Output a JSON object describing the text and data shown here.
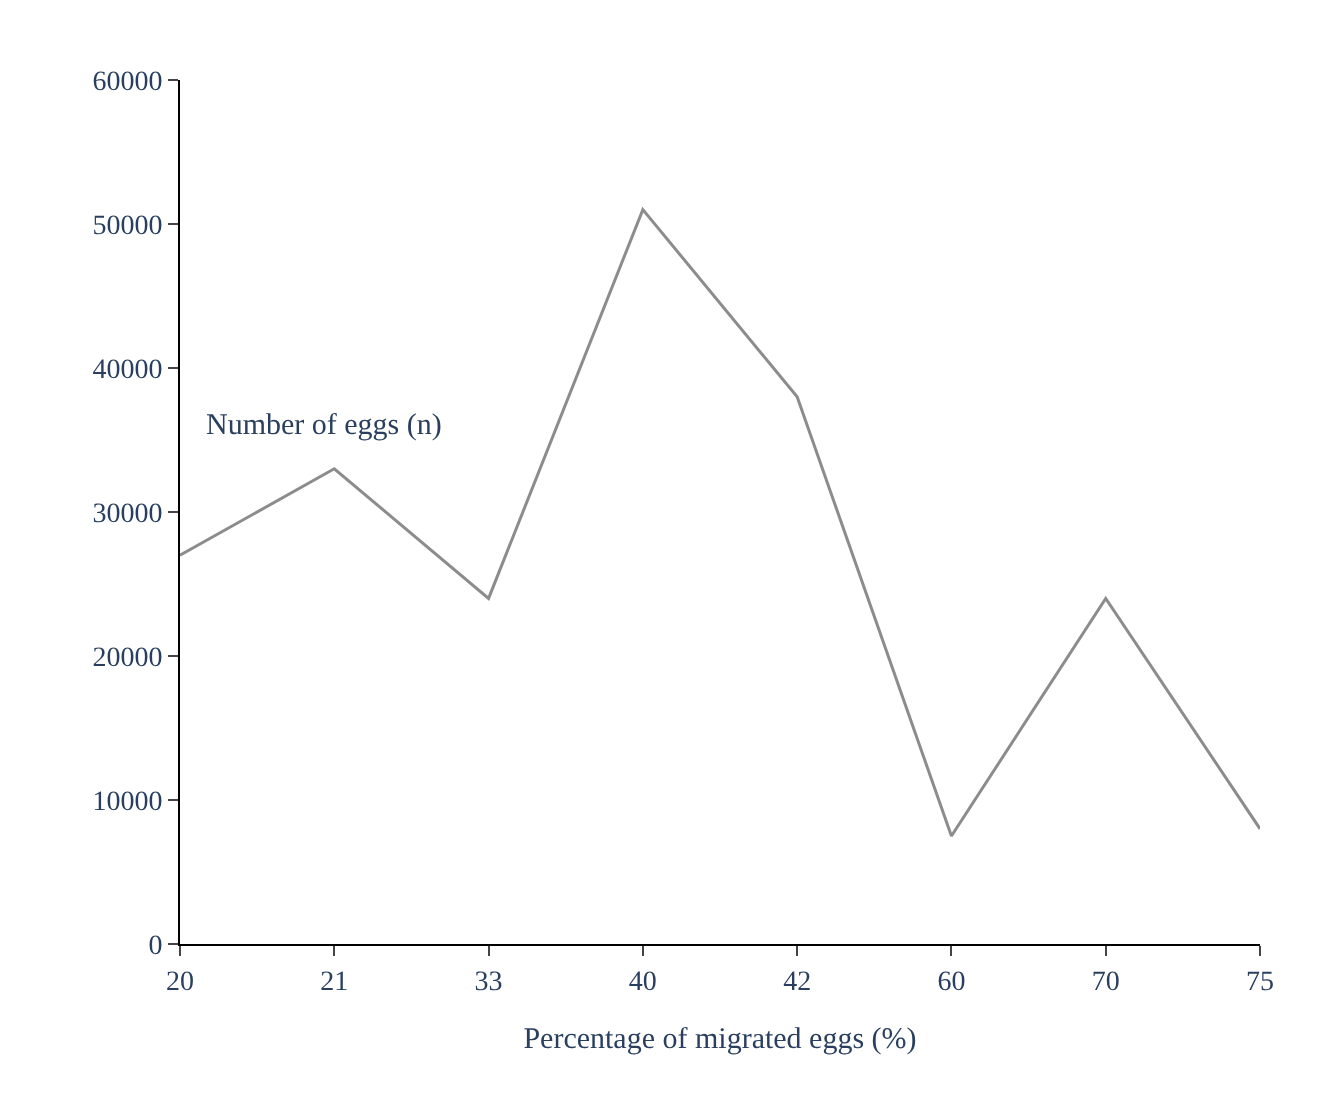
{
  "chart_data": {
    "type": "line",
    "xlabel": "Percentage of migrated eggs (%)",
    "ylabel": "Number of eggs (n)",
    "categories": [
      "20",
      "21",
      "33",
      "40",
      "42",
      "60",
      "70",
      "75"
    ],
    "series": [
      {
        "color": "#8c8c8c",
        "values": [
          27000,
          33000,
          24000,
          51000,
          38000,
          7500,
          24000,
          8000
        ]
      }
    ],
    "ylim": [
      0,
      60000
    ],
    "yticks": [
      0,
      10000,
      20000,
      30000,
      40000,
      50000,
      60000
    ],
    "grid": false,
    "legend": false,
    "marker": "none",
    "line_style": "solid"
  }
}
